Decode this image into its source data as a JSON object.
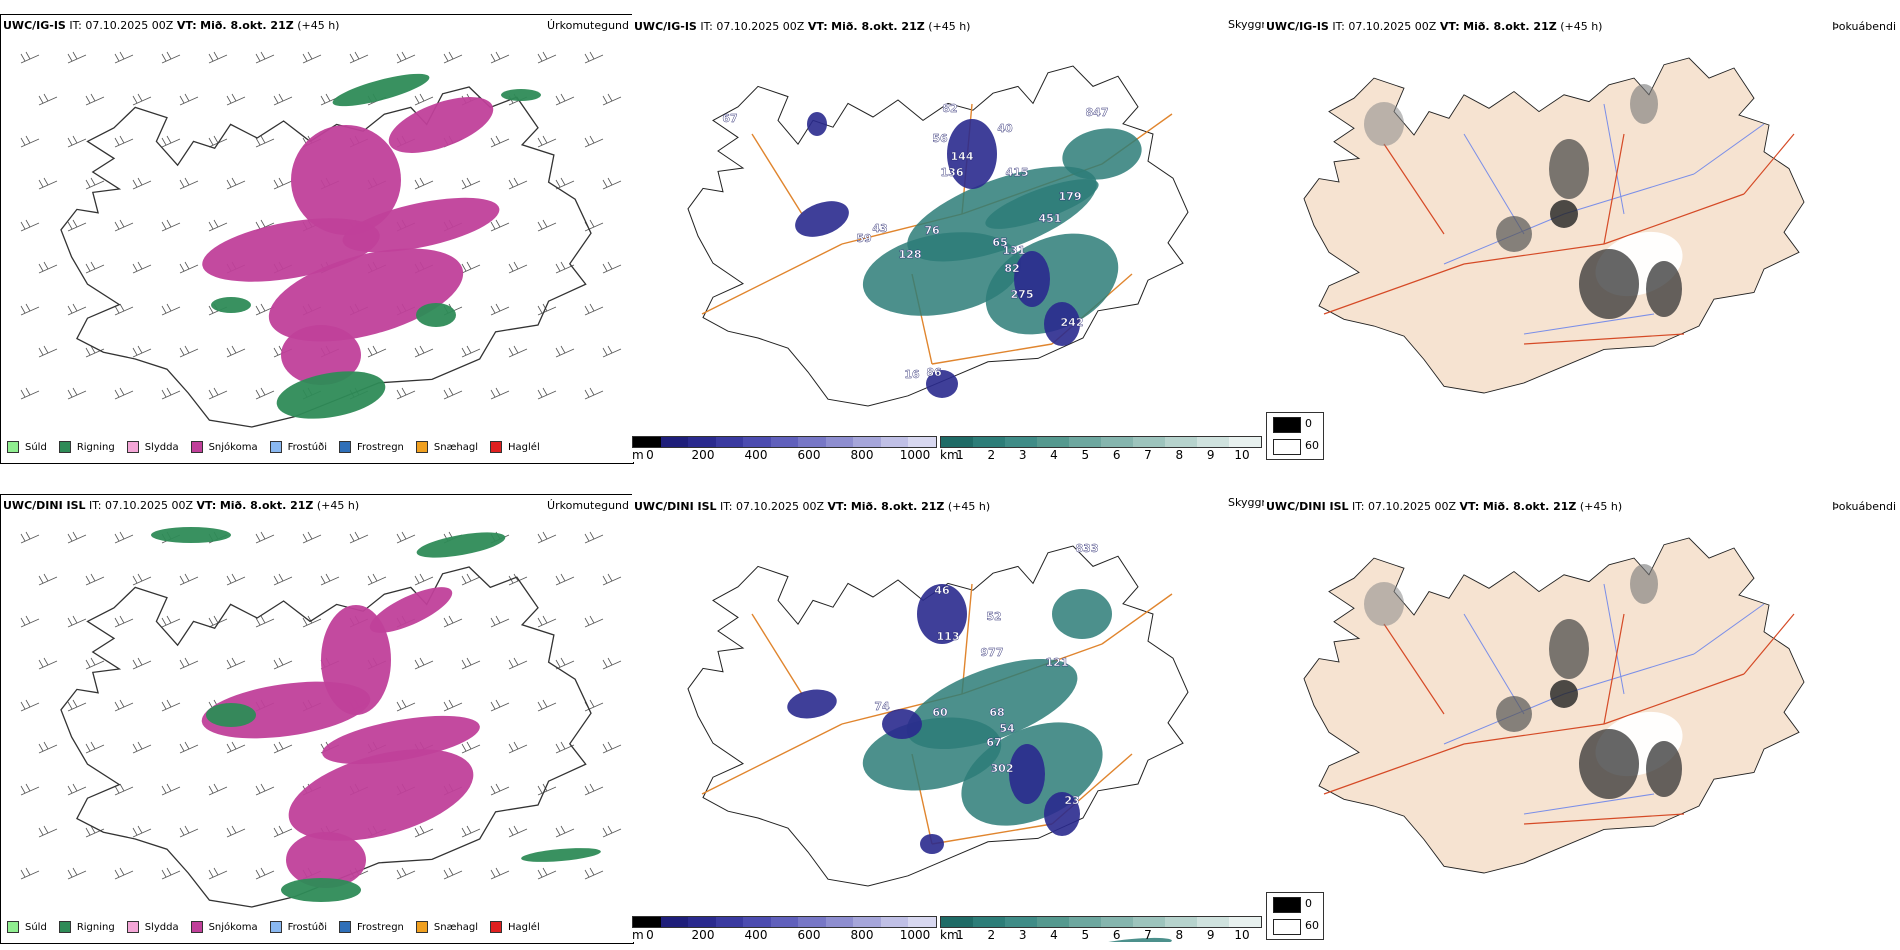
{
  "panels": {
    "r1_precip": {
      "model": "UWC/IG-IS",
      "it": "IT: 07.10.2025 00Z",
      "vt_label": "VT:",
      "vt_value": "Mið. 8.okt. 21Z",
      "lead": "(+45 h)",
      "variable": "Úrkomutegund"
    },
    "r1_cloud": {
      "model": "UWC/IG-IS",
      "it": "IT: 07.10.2025 00Z",
      "vt_label": "VT:",
      "vt_value": "Mið. 8.okt. 21Z",
      "lead": "(+45 h)",
      "variable": "Skyggni",
      "labels": [
        "67",
        "82",
        "56",
        "40",
        "144",
        "136",
        "415",
        "847",
        "179",
        "451",
        "43",
        "59",
        "76",
        "128",
        "65",
        "131",
        "82",
        "275",
        "242",
        "16",
        "86"
      ]
    },
    "r1_fog": {
      "model": "UWC/IG-IS",
      "it": "IT: 07.10.2025 00Z",
      "vt_label": "VT:",
      "vt_value": "Mið. 8.okt. 21Z",
      "lead": "(+45 h)",
      "variable": "Þokuábendi"
    },
    "r2_precip": {
      "model": "UWC/DINI ISL",
      "it": "IT: 07.10.2025 00Z",
      "vt_label": "VT:",
      "vt_value": "Mið. 8.okt. 21Z",
      "lead": "(+45 h)",
      "variable": "Úrkomutegund"
    },
    "r2_cloud": {
      "model": "UWC/DINI ISL",
      "it": "IT: 07.10.2025 00Z",
      "vt_label": "VT:",
      "vt_value": "Mið. 8.okt. 21Z",
      "lead": "(+45 h)",
      "variable": "Skyggni",
      "labels": [
        "46",
        "113",
        "52",
        "977",
        "121",
        "74",
        "60",
        "68",
        "54",
        "67",
        "302",
        "23",
        "833"
      ]
    },
    "r2_fog": {
      "model": "UWC/DINI ISL",
      "it": "IT: 07.10.2025 00Z",
      "vt_label": "VT:",
      "vt_value": "Mið. 8.okt. 21Z",
      "lead": "(+45 h)",
      "variable": "Þokuábendi"
    }
  },
  "precip_legend": [
    {
      "label": "Súld",
      "color": "#90ee90"
    },
    {
      "label": "Rigning",
      "color": "#2e8b57"
    },
    {
      "label": "Slydda",
      "color": "#f4a6d7"
    },
    {
      "label": "Snjókoma",
      "color": "#c0409a"
    },
    {
      "label": "Frostúði",
      "color": "#8ab8f0"
    },
    {
      "label": "Frostregn",
      "color": "#2f6fb8"
    },
    {
      "label": "Snæhagl",
      "color": "#f0a020"
    },
    {
      "label": "Haglél",
      "color": "#e02020"
    }
  ],
  "cloudbase_bar": {
    "unit": "m",
    "ticks": [
      "0",
      "200",
      "400",
      "600",
      "800",
      "1000"
    ],
    "colors": [
      "#000000",
      "#1e1e7a",
      "#2a2a8e",
      "#3a3aa0",
      "#4c4cb0",
      "#6060bc",
      "#7777c6",
      "#8e8ed0",
      "#a6a6da",
      "#c0c0e6",
      "#d8d8f0"
    ]
  },
  "visibility_bar": {
    "unit": "km",
    "ticks": [
      "1",
      "2",
      "3",
      "4",
      "5",
      "6",
      "7",
      "8",
      "9",
      "10"
    ],
    "colors": [
      "#1f6b66",
      "#2d7d78",
      "#3f8c87",
      "#55998f",
      "#6da79f",
      "#85b5ae",
      "#9dc4bd",
      "#b6d3cd",
      "#cfe2de",
      "#e8f1ef"
    ]
  },
  "fog_legend": [
    {
      "label": "0",
      "color": "#000000"
    },
    {
      "label": "60",
      "color": "#ffffff"
    }
  ],
  "colors": {
    "iceland_fill": "#f6e3d1",
    "roads": "#e0852e",
    "rivers": "#7a8ee8",
    "snow": "#c0409a",
    "rain": "#2e8b57",
    "visibility_green": "#2d7d78",
    "cloud_blue": "#2a2a8e"
  }
}
